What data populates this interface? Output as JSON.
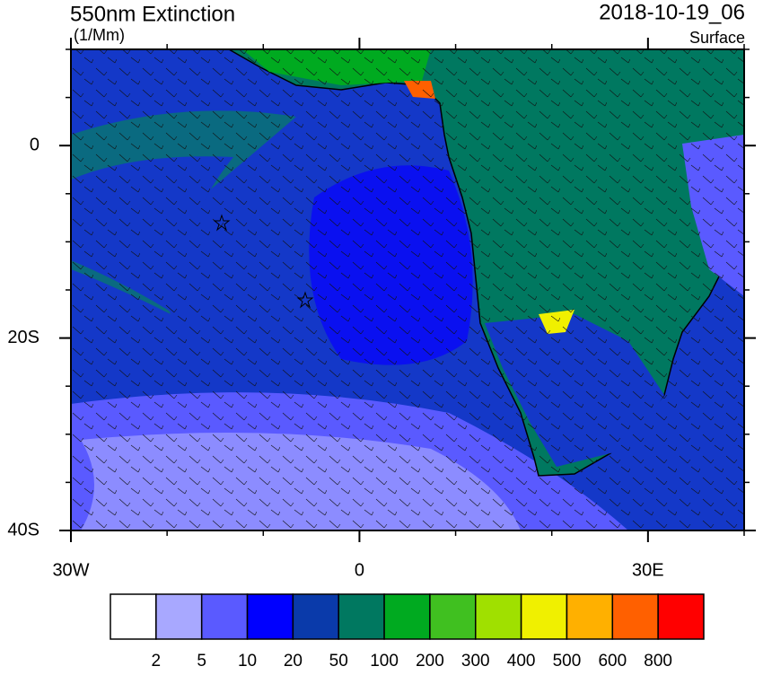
{
  "header": {
    "title": "550nm Extinction",
    "units": "(1/Mm)",
    "date": "2018-10-19_06",
    "level": "Surface"
  },
  "map": {
    "lonlim": [
      -30,
      40
    ],
    "latlim": [
      -40,
      10
    ],
    "lon_ticks": [
      {
        "value": -30,
        "label": "30W"
      },
      0,
      {
        "value": 30,
        "label": "30E"
      }
    ],
    "lat_ticks": [
      0,
      {
        "value": -20,
        "label": "20S"
      },
      {
        "value": -40,
        "label": "40S"
      }
    ]
  },
  "colorbar": {
    "levels": [
      2,
      5,
      10,
      20,
      50,
      100,
      200,
      300,
      400,
      500,
      600,
      800
    ],
    "colors": [
      "#ffffff",
      "#a8a8ff",
      "#5a5aff",
      "#0000ff",
      "#0a3aaa",
      "#007860",
      "#00aa20",
      "#40c020",
      "#a0e000",
      "#f0f000",
      "#ffb000",
      "#ff6000",
      "#ff0000"
    ]
  }
}
